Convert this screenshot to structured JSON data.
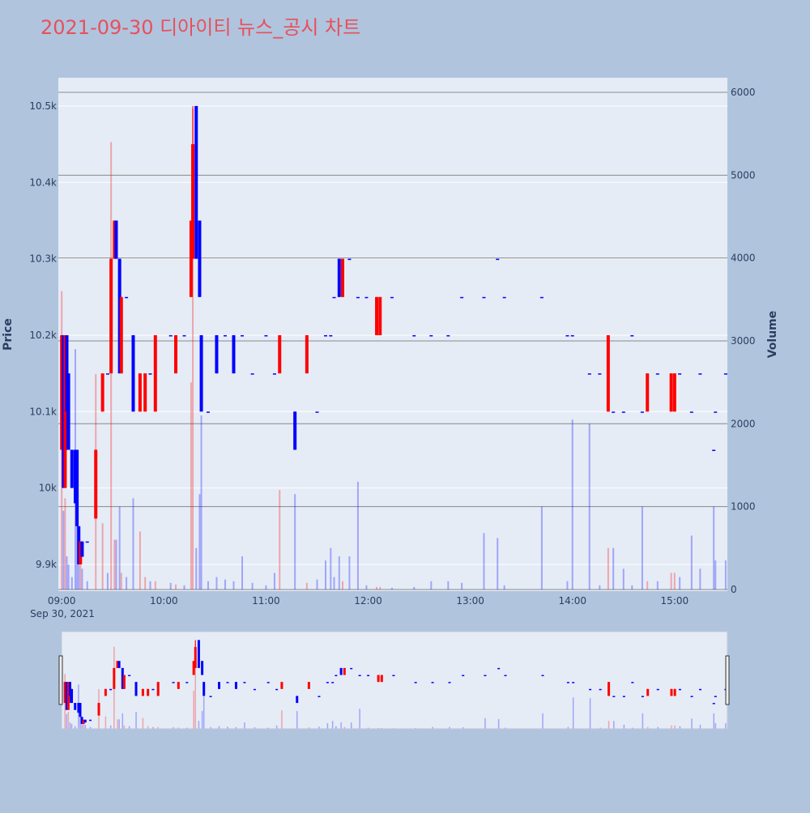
{
  "chart_data": {
    "type": "candlestick",
    "title": "2021-09-30 디아이티 뉴스_공시 차트",
    "y_label": "Price",
    "y2_label": "Volume",
    "date_label": "Sep 30, 2021",
    "increasing_color": "#ff0000",
    "decreasing_color": "#0000ff",
    "x": [
      "09:00",
      "09:01",
      "09:02",
      "09:03",
      "09:04",
      "09:06",
      "09:08",
      "09:09",
      "09:10",
      "09:11",
      "09:12",
      "09:15",
      "09:20",
      "09:24",
      "09:27",
      "09:29",
      "09:31",
      "09:32",
      "09:34",
      "09:35",
      "09:38",
      "09:42",
      "09:46",
      "09:49",
      "09:52",
      "09:55",
      "10:04",
      "10:07",
      "10:12",
      "10:16",
      "10:17",
      "10:19",
      "10:21",
      "10:22",
      "10:26",
      "10:31",
      "10:36",
      "10:41",
      "10:46",
      "10:52",
      "11:00",
      "11:05",
      "11:08",
      "11:17",
      "11:24",
      "11:30",
      "11:35",
      "11:38",
      "11:40",
      "11:43",
      "11:45",
      "11:49",
      "11:54",
      "11:59",
      "12:05",
      "12:07",
      "12:14",
      "12:27",
      "12:37",
      "12:47",
      "12:55",
      "13:08",
      "13:16",
      "13:20",
      "13:42",
      "13:57",
      "14:00",
      "14:10",
      "14:16",
      "14:21",
      "14:24",
      "14:30",
      "14:35",
      "14:41",
      "14:44",
      "14:50",
      "14:58",
      "15:00",
      "15:03",
      "15:10",
      "15:15",
      "15:23",
      "15:24",
      "15:30"
    ],
    "open": [
      10050,
      10200,
      10000,
      10200,
      10150,
      10050,
      10050,
      10050,
      9950,
      9900,
      9930,
      9930,
      9960,
      10100,
      10150,
      10150,
      10300,
      10350,
      10300,
      10150,
      10250,
      10200,
      10100,
      10100,
      10150,
      10100,
      10200,
      10150,
      10200,
      10250,
      10300,
      10500,
      10350,
      10200,
      10100,
      10200,
      10200,
      10200,
      10200,
      10150,
      10200,
      10150,
      10150,
      10100,
      10150,
      10100,
      10200,
      10200,
      10250,
      10300,
      10250,
      10300,
      10250,
      10250,
      10200,
      10200,
      10250,
      10200,
      10200,
      10200,
      10250,
      10250,
      10300,
      10250,
      10250,
      10200,
      10200,
      10150,
      10150,
      10100,
      10100,
      10100,
      10200,
      10100,
      10100,
      10150,
      10100,
      10100,
      10150,
      10100,
      10150,
      10050,
      10100,
      10150
    ],
    "high": [
      10200,
      10200,
      10200,
      10200,
      10150,
      10050,
      10050,
      10050,
      9950,
      9930,
      9930,
      9930,
      10050,
      10150,
      10150,
      10300,
      10350,
      10350,
      10300,
      10250,
      10250,
      10200,
      10150,
      10150,
      10150,
      10200,
      10200,
      10200,
      10200,
      10350,
      10500,
      10500,
      10350,
      10200,
      10100,
      10200,
      10200,
      10200,
      10200,
      10150,
      10200,
      10150,
      10200,
      10100,
      10200,
      10100,
      10200,
      10200,
      10250,
      10300,
      10300,
      10300,
      10250,
      10250,
      10250,
      10250,
      10250,
      10200,
      10200,
      10200,
      10250,
      10250,
      10300,
      10250,
      10250,
      10200,
      10200,
      10150,
      10150,
      10200,
      10100,
      10100,
      10200,
      10100,
      10150,
      10150,
      10150,
      10150,
      10150,
      10100,
      10150,
      10050,
      10100,
      10150
    ],
    "low": [
      10050,
      10000,
      10000,
      10050,
      10050,
      10000,
      9980,
      9950,
      9900,
      9900,
      9910,
      9930,
      9960,
      10100,
      10150,
      10150,
      10300,
      10300,
      10150,
      10150,
      10250,
      10100,
      10100,
      10100,
      10150,
      10100,
      10200,
      10150,
      10200,
      10250,
      10300,
      10300,
      10250,
      10100,
      10100,
      10150,
      10200,
      10150,
      10200,
      10150,
      10200,
      10150,
      10150,
      10050,
      10150,
      10100,
      10200,
      10200,
      10250,
      10250,
      10250,
      10300,
      10250,
      10250,
      10200,
      10200,
      10250,
      10200,
      10200,
      10200,
      10250,
      10250,
      10300,
      10250,
      10250,
      10200,
      10200,
      10150,
      10150,
      10100,
      10100,
      10100,
      10200,
      10100,
      10100,
      10150,
      10100,
      10100,
      10150,
      10100,
      10150,
      10050,
      10100,
      10150
    ],
    "close": [
      10200,
      10000,
      10200,
      10100,
      10050,
      10000,
      9980,
      9950,
      9900,
      9930,
      9910,
      9930,
      10050,
      10150,
      10150,
      10300,
      10350,
      10300,
      10150,
      10250,
      10250,
      10100,
      10150,
      10150,
      10150,
      10200,
      10200,
      10200,
      10200,
      10350,
      10450,
      10300,
      10250,
      10100,
      10100,
      10150,
      10200,
      10150,
      10200,
      10150,
      10200,
      10150,
      10200,
      10050,
      10200,
      10100,
      10200,
      10200,
      10250,
      10250,
      10300,
      10300,
      10250,
      10250,
      10250,
      10250,
      10250,
      10200,
      10200,
      10200,
      10250,
      10250,
      10300,
      10250,
      10250,
      10200,
      10200,
      10150,
      10150,
      10200,
      10100,
      10100,
      10200,
      10100,
      10150,
      10150,
      10150,
      10150,
      10150,
      10100,
      10150,
      10050,
      10100,
      10150
    ],
    "volume": [
      3600,
      950,
      1100,
      400,
      300,
      150,
      2900,
      1200,
      600,
      400,
      250,
      100,
      2600,
      800,
      200,
      5400,
      600,
      600,
      1000,
      200,
      150,
      1100,
      700,
      150,
      100,
      100,
      80,
      60,
      50,
      2500,
      5800,
      500,
      1150,
      2100,
      100,
      150,
      120,
      100,
      400,
      80,
      50,
      200,
      1200,
      1150,
      80,
      120,
      350,
      500,
      150,
      400,
      100,
      400,
      1300,
      50,
      30,
      30,
      20,
      30,
      100,
      100,
      80,
      680,
      620,
      50,
      1000,
      100,
      2050,
      2000,
      50,
      500,
      500,
      250,
      50,
      1000,
      100,
      100,
      200,
      200,
      150,
      650,
      250,
      1000,
      350,
      350
    ],
    "xlim": [
      "08:58",
      "15:31"
    ],
    "xticks": [
      "09:00",
      "10:00",
      "11:00",
      "12:00",
      "13:00",
      "14:00",
      "15:00"
    ],
    "ylim": [
      9865,
      10537
    ],
    "yticks": [
      {
        "value": 9900,
        "label": "9.9k"
      },
      {
        "value": 10000,
        "label": "10k"
      },
      {
        "value": 10100,
        "label": "10.1k"
      },
      {
        "value": 10200,
        "label": "10.2k"
      },
      {
        "value": 10300,
        "label": "10.3k"
      },
      {
        "value": 10400,
        "label": "10.4k"
      },
      {
        "value": 10500,
        "label": "10.5k"
      }
    ],
    "y2lim": [
      -20,
      6176
    ],
    "y2ticks": [
      0,
      1000,
      2000,
      3000,
      4000,
      5000,
      6000
    ],
    "grid": true,
    "rangeslider": true
  }
}
